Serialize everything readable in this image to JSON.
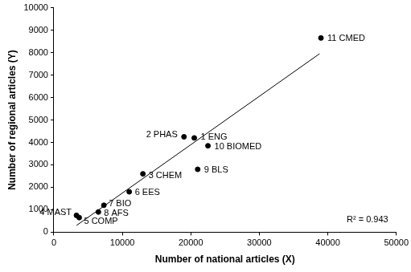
{
  "chart_data": {
    "type": "scatter",
    "x_label": "Number of national articles (X)",
    "y_label": "Number of regional articles (Y)",
    "series": [
      {
        "type": "scatter",
        "color": "#000000",
        "marker": "circle",
        "x": [
          20500,
          19000,
          13000,
          3300,
          3700,
          11000,
          7300,
          6500,
          21000,
          22500,
          39000
        ],
        "values": [
          4200,
          4250,
          2600,
          750,
          650,
          1800,
          1200,
          900,
          2800,
          3850,
          8650
        ],
        "point_labels": [
          "1 ENG",
          "2 PHAS",
          "3 CHEM",
          "4 MAST",
          "5 COMP",
          "6 EES",
          "7 BIO",
          "8 AFS",
          "9 BLS",
          "10 BIOMED",
          "11 CMED"
        ]
      },
      {
        "type": "line",
        "color": "#000000",
        "line_style": "solid",
        "x": [
          3300,
          38800
        ],
        "values": [
          300,
          7950
        ]
      }
    ],
    "annotations": [
      {
        "text": "R² = 0.943"
      }
    ],
    "xlim": [
      0,
      50000
    ],
    "xticks": [
      0,
      10000,
      20000,
      30000,
      40000,
      50000
    ],
    "ylim": [
      0,
      10000
    ],
    "yticks": [
      0,
      1000,
      2000,
      3000,
      4000,
      5000,
      6000,
      7000,
      8000,
      9000,
      10000
    ],
    "grid": false
  }
}
